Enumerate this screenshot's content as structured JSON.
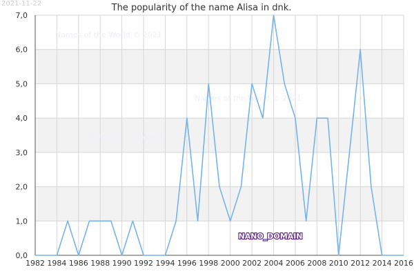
{
  "date_stamp": "2021-11-22",
  "watermark_text": "Names of the World © 2021",
  "badge_text": "NANO_DOMAIN",
  "colors": {
    "line": "#74b3ee",
    "band": "#f2f2f2",
    "grid": "#d6d6d6",
    "axis": "#555555",
    "badge_fill": "#ffffff",
    "badge_stroke": "#5b1a8a"
  },
  "chart_data": {
    "type": "line",
    "title": "The popularity of the name Alisa in dnk.",
    "xlabel": "",
    "ylabel": "",
    "xlim": [
      1982,
      2016
    ],
    "ylim": [
      0,
      7
    ],
    "x_ticks": [
      "1982",
      "1984",
      "1986",
      "1988",
      "1990",
      "1992",
      "1994",
      "1996",
      "1998",
      "2000",
      "2002",
      "2004",
      "2006",
      "2008",
      "2010",
      "2012",
      "2014",
      "2016"
    ],
    "y_ticks": [
      "0,0",
      "1,0",
      "2,0",
      "3,0",
      "4,0",
      "5,0",
      "6,0",
      "7,0"
    ],
    "grid": true,
    "legend": "none",
    "series": [
      {
        "x": [
          1982,
          1983,
          1984,
          1985,
          1986,
          1987,
          1988,
          1989,
          1990,
          1991,
          1992,
          1993,
          1994,
          1995,
          1996,
          1997,
          1998,
          1999,
          2000,
          2001,
          2002,
          2003,
          2004,
          2005,
          2006,
          2007,
          2008,
          2009,
          2010,
          2011,
          2012,
          2013,
          2014,
          2015,
          2016
        ],
        "values": [
          0,
          0,
          0,
          1,
          0,
          1,
          1,
          1,
          0,
          1,
          0,
          0,
          0,
          1,
          4,
          1,
          5,
          2,
          1,
          2,
          5,
          4,
          7,
          5,
          4,
          1,
          4,
          4,
          0,
          3,
          6,
          2,
          0,
          0,
          0
        ]
      }
    ]
  }
}
